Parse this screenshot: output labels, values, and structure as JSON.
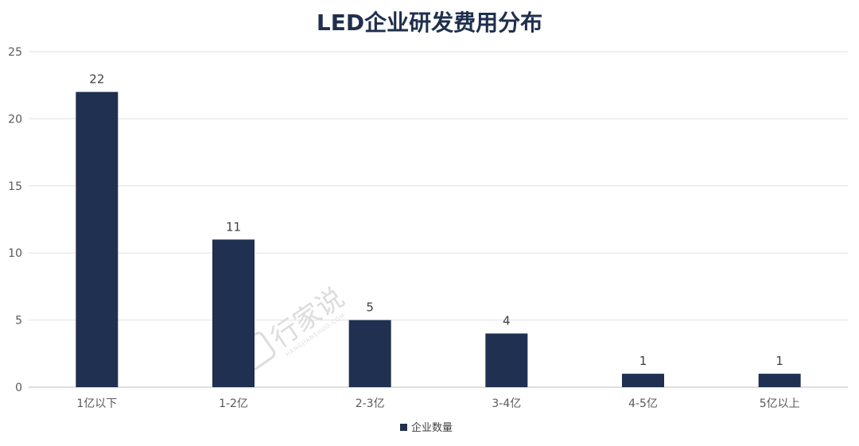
{
  "chart_data": {
    "type": "bar",
    "title": "LED企业研发费用分布",
    "categories": [
      "1亿以下",
      "1-2亿",
      "2-3亿",
      "3-4亿",
      "4-5亿",
      "5亿以上"
    ],
    "series": [
      {
        "name": "企业数量",
        "values": [
          22,
          11,
          5,
          4,
          1,
          1
        ]
      }
    ],
    "ylim": [
      0,
      25
    ],
    "yticks": [
      0,
      5,
      10,
      15,
      20,
      25
    ],
    "grid": true,
    "legend_position": "bottom",
    "bar_color": "#1f3050"
  },
  "watermark": {
    "text": "行家说",
    "subtext": "HANGJIANSHUO.COM"
  }
}
